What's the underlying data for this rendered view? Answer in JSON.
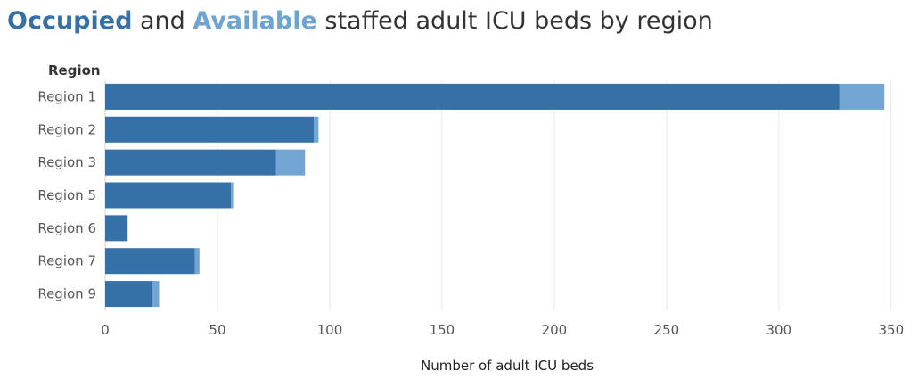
{
  "title": {
    "occupied_word": "Occupied",
    "conj": "and",
    "available_word": "Available",
    "rest": "staffed adult ICU beds by region"
  },
  "colors": {
    "occupied": "#3570a6",
    "available": "#72a5d1",
    "gridline": "#e8e8e8",
    "axis_text": "#555555"
  },
  "chart_data": {
    "type": "bar",
    "orientation": "horizontal",
    "stacked": true,
    "ylabel": "Region",
    "xlabel": "Number of adult ICU beds",
    "categories": [
      "Region 1",
      "Region 2",
      "Region 3",
      "Region 5",
      "Region 6",
      "Region 7",
      "Region 9"
    ],
    "series": [
      {
        "name": "Occupied",
        "values": [
          327,
          93,
          76,
          56,
          10,
          40,
          21
        ]
      },
      {
        "name": "Available",
        "values": [
          20,
          2,
          13,
          1,
          0,
          2,
          3
        ]
      }
    ],
    "xlim": [
      0,
      360
    ],
    "xticks": [
      0,
      50,
      100,
      150,
      200,
      250,
      300,
      350
    ],
    "grid": true
  }
}
